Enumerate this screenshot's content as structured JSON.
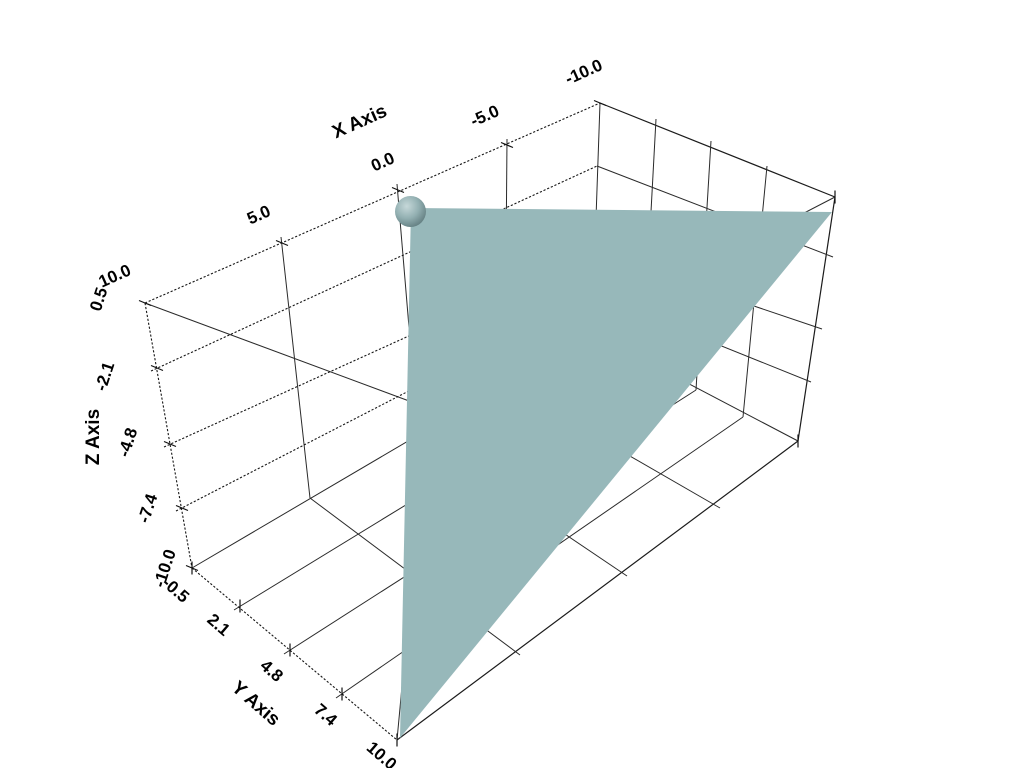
{
  "window": {
    "background": "#ffffff"
  },
  "chart_data": {
    "type": "scatter",
    "render_style": "3d-wireframe-bounds-grid",
    "title": "",
    "axes": {
      "x": {
        "label": "X Axis",
        "ticks": [
          "10.0",
          "5.0",
          "0.0",
          "-5.0",
          "-10.0"
        ],
        "range": [
          -10.0,
          10.0
        ]
      },
      "y": {
        "label": "Y Axis",
        "ticks": [
          "-0.5",
          "2.1",
          "4.8",
          "7.4",
          "10.0"
        ],
        "range": [
          -0.5,
          10.0
        ]
      },
      "z": {
        "label": "Z Axis",
        "ticks": [
          "0.5",
          "-2.1",
          "-4.8",
          "-7.4",
          "-10.0"
        ],
        "range": [
          -10.0,
          0.5
        ]
      }
    },
    "grid": "on",
    "legend_position": "none",
    "objects": [
      {
        "name": "triangle-mesh",
        "type": "triangle",
        "vertices_3d": [
          [
            0,
            0,
            0
          ],
          [
            -10,
            10,
            0
          ],
          [
            10,
            10,
            -10
          ]
        ],
        "fill_color": "#97b8ba"
      },
      {
        "name": "sphere-mesh",
        "type": "sphere",
        "center_3d": [
          0,
          0,
          0
        ],
        "radius": 0.5,
        "color_light": "#c6d8d9",
        "color_mid": "#93b0b2",
        "color_dark": "#5e797c"
      }
    ],
    "line_color": "#1b1b1b",
    "background": "#ffffff"
  }
}
